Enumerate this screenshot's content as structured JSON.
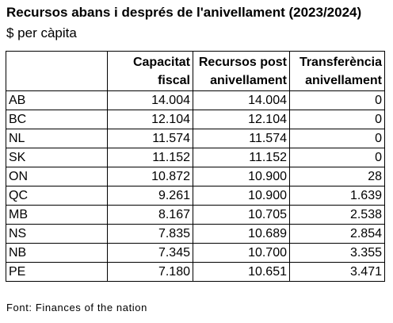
{
  "title": "Recursos abans i després de l'anivellament (2023/2024)",
  "subtitle": "$ per càpita",
  "columns": [
    "",
    "Capacitat fiscal",
    "Recursos post anivellament",
    "Transferència anivellament"
  ],
  "column_lines": [
    [
      "",
      ""
    ],
    [
      "Capacitat",
      "fiscal"
    ],
    [
      "Recursos post",
      "anivellament"
    ],
    [
      "Transferència",
      "anivellament"
    ]
  ],
  "rows": [
    {
      "label": "AB",
      "capacitat": "14.004",
      "recursos": "14.004",
      "transferencia": "0"
    },
    {
      "label": "BC",
      "capacitat": "12.104",
      "recursos": "12.104",
      "transferencia": "0"
    },
    {
      "label": "NL",
      "capacitat": "11.574",
      "recursos": "11.574",
      "transferencia": "0"
    },
    {
      "label": "SK",
      "capacitat": "11.152",
      "recursos": "11.152",
      "transferencia": "0"
    },
    {
      "label": "ON",
      "capacitat": "10.872",
      "recursos": "10.900",
      "transferencia": "28"
    },
    {
      "label": "QC",
      "capacitat": "9.261",
      "recursos": "10.900",
      "transferencia": "1.639"
    },
    {
      "label": "MB",
      "capacitat": "8.167",
      "recursos": "10.705",
      "transferencia": "2.538"
    },
    {
      "label": "NS",
      "capacitat": "7.835",
      "recursos": "10.689",
      "transferencia": "2.854"
    },
    {
      "label": "NB",
      "capacitat": "7.345",
      "recursos": "10.700",
      "transferencia": "3.355"
    },
    {
      "label": "PE",
      "capacitat": "7.180",
      "recursos": "10.651",
      "transferencia": "3.471"
    }
  ],
  "source": "Font: Finances of the nation"
}
